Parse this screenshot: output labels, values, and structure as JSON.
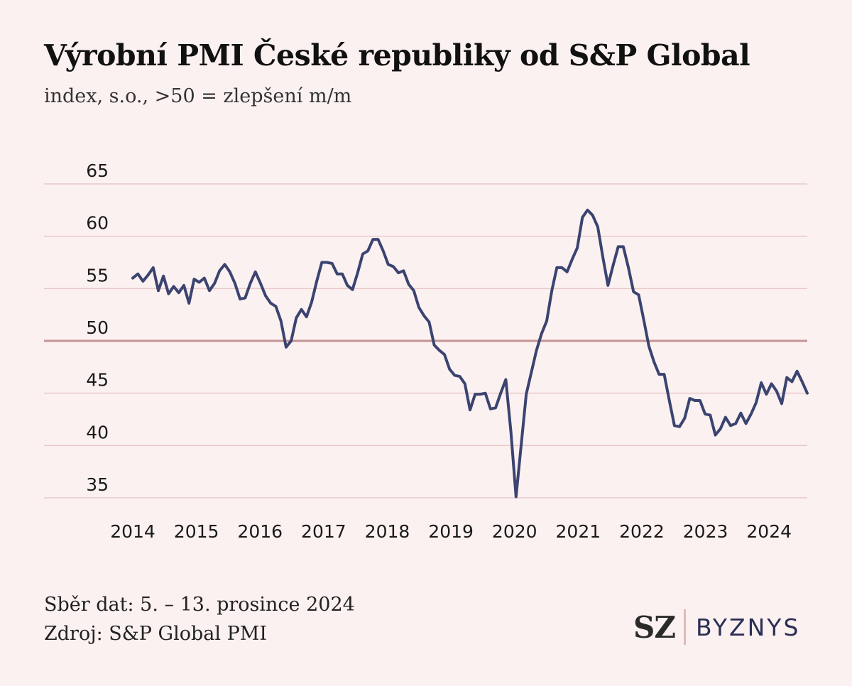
{
  "chart_data": {
    "type": "line",
    "title": "Výrobní PMI České republiky od S&P Global",
    "subtitle": "index, s.o., >50 = zlepšení m/m",
    "xlabel": "",
    "ylabel": "",
    "xlim": [
      2014,
      2024.6
    ],
    "ylim": [
      35,
      65
    ],
    "y_ticks": [
      "35",
      "40",
      "45",
      "50",
      "55",
      "60",
      "65"
    ],
    "x_ticks": [
      "2014",
      "2015",
      "2016",
      "2017",
      "2018",
      "2019",
      "2020",
      "2021",
      "2022",
      "2023",
      "2024"
    ],
    "reference_line": 50,
    "grid": true,
    "colors": {
      "line": "#3b4470",
      "grid": "#e8c9c9",
      "reference": "#c49494",
      "background": "#fcf1f1"
    },
    "series": [
      {
        "values": [
          56.0,
          56.4,
          55.7,
          56.3,
          57.0,
          54.8,
          56.2,
          54.5,
          55.2,
          54.6,
          55.3,
          53.6,
          55.9,
          55.6,
          56.0,
          54.8,
          55.5,
          56.7,
          57.3,
          56.6,
          55.5,
          54.0,
          54.1,
          55.5,
          56.6,
          55.5,
          54.3,
          53.6,
          53.3,
          51.9,
          49.4,
          50.0,
          52.2,
          53.0,
          52.3,
          53.7,
          55.7,
          57.5,
          57.5,
          57.4,
          56.4,
          56.4,
          55.3,
          54.9,
          56.5,
          58.3,
          58.6,
          59.7,
          59.7,
          58.6,
          57.3,
          57.1,
          56.5,
          56.7,
          55.4,
          54.8,
          53.2,
          52.4,
          51.8,
          49.6,
          49.1,
          48.7,
          47.3,
          46.7,
          46.6,
          45.9,
          43.4,
          44.9,
          44.9,
          45.0,
          43.5,
          43.6,
          45.0,
          46.3,
          41.3,
          35.1,
          40.0,
          44.9,
          47.0,
          49.1,
          50.7,
          51.9,
          54.8,
          57.0,
          57.0,
          56.6,
          57.8,
          58.9,
          61.8,
          62.5,
          62.0,
          60.9,
          58.0,
          55.3,
          57.2,
          59.0,
          59.0,
          57.0,
          54.7,
          54.4,
          52.0,
          49.5,
          48.0,
          46.8,
          46.8,
          44.3,
          41.9,
          41.8,
          42.6,
          44.5,
          44.3,
          44.3,
          43.0,
          42.9,
          41.0,
          41.6,
          42.7,
          41.9,
          42.1,
          43.1,
          42.1,
          43.0,
          44.1,
          46.0,
          44.9,
          45.9,
          45.2,
          44.0,
          46.5,
          46.1,
          47.1,
          46.1,
          45.0
        ]
      }
    ]
  },
  "footer": {
    "date_text": "Sběr dat: 5. – 13. prosince 2024",
    "source_text": "Zdroj: S&P Global PMI"
  },
  "logo": {
    "sz": "SZ",
    "byznys": "BYZNYS"
  }
}
